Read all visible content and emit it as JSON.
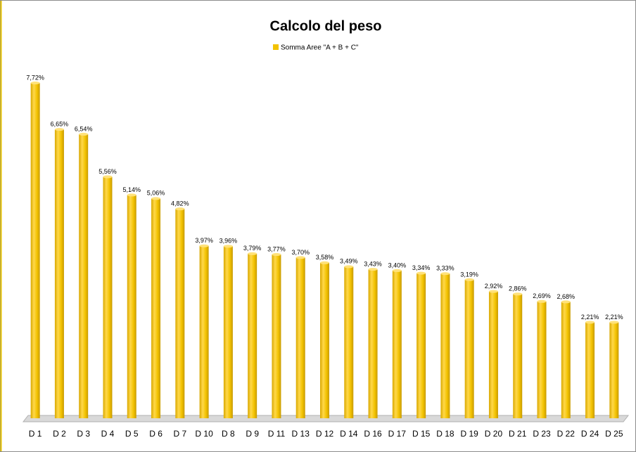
{
  "chart_data": {
    "type": "bar",
    "title": "Calcolo del peso",
    "categories": [
      "D 1",
      "D 2",
      "D 3",
      "D 4",
      "D 5",
      "D 6",
      "D 7",
      "D 10",
      "D 8",
      "D 9",
      "D 11",
      "D 13",
      "D 12",
      "D 14",
      "D 16",
      "D 17",
      "D 15",
      "D 18",
      "D 19",
      "D 20",
      "D 21",
      "D 23",
      "D 22",
      "D 24",
      "D 25"
    ],
    "series": [
      {
        "name": "Somma Aree \"A + B + C\"",
        "color": "#f2c200",
        "values": [
          7.72,
          6.65,
          6.54,
          5.56,
          5.14,
          5.06,
          4.82,
          3.97,
          3.96,
          3.79,
          3.77,
          3.7,
          3.58,
          3.49,
          3.43,
          3.4,
          3.34,
          3.33,
          3.19,
          2.92,
          2.86,
          2.69,
          2.68,
          2.21,
          2.21
        ],
        "value_labels": [
          "7,72%",
          "6,65%",
          "6,54%",
          "5,56%",
          "5,14%",
          "5,06%",
          "4,82%",
          "3,97%",
          "3,96%",
          "3,79%",
          "3,77%",
          "3,70%",
          "3,58%",
          "3,49%",
          "3,43%",
          "3,40%",
          "3,34%",
          "3,33%",
          "3,19%",
          "2,92%",
          "2,86%",
          "2,69%",
          "2,68%",
          "2,21%",
          "2,21%"
        ]
      }
    ],
    "legend": "top"
  }
}
